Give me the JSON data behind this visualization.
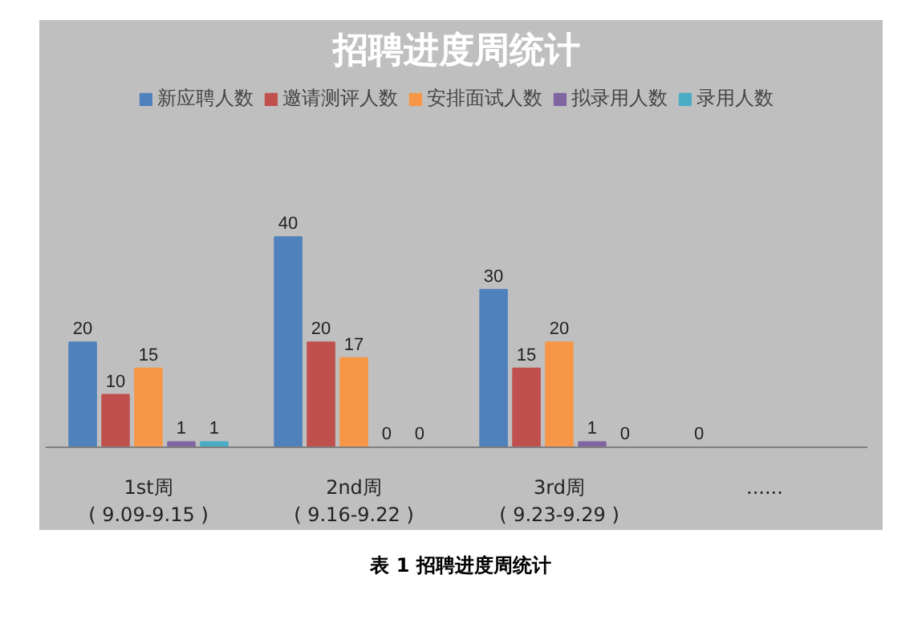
{
  "chart_data": {
    "type": "bar",
    "title": "招聘进度周统计",
    "categories": [
      "1st周\n( 9.09-9.15 )",
      "2nd周\n( 9.16-9.22 )",
      "3rd周\n( 9.23-9.29 )",
      "......"
    ],
    "series": [
      {
        "name": "新应聘人数",
        "color": "#4f81bd",
        "values": [
          20,
          40,
          30,
          0
        ]
      },
      {
        "name": "邀请测评人数",
        "color": "#c0504d",
        "values": [
          10,
          20,
          15,
          null
        ]
      },
      {
        "name": "安排面试人数",
        "color": "#f79646",
        "values": [
          15,
          17,
          20,
          null
        ]
      },
      {
        "name": "拟录用人数",
        "color": "#8064a2",
        "values": [
          1,
          0,
          1,
          null
        ]
      },
      {
        "name": "录用人数",
        "color": "#4bacc6",
        "values": [
          1,
          0,
          0,
          null
        ]
      }
    ],
    "data_labels": true,
    "grid": false,
    "legend": "top",
    "annotations": [
      "表 1  招聘进度周统计"
    ]
  }
}
